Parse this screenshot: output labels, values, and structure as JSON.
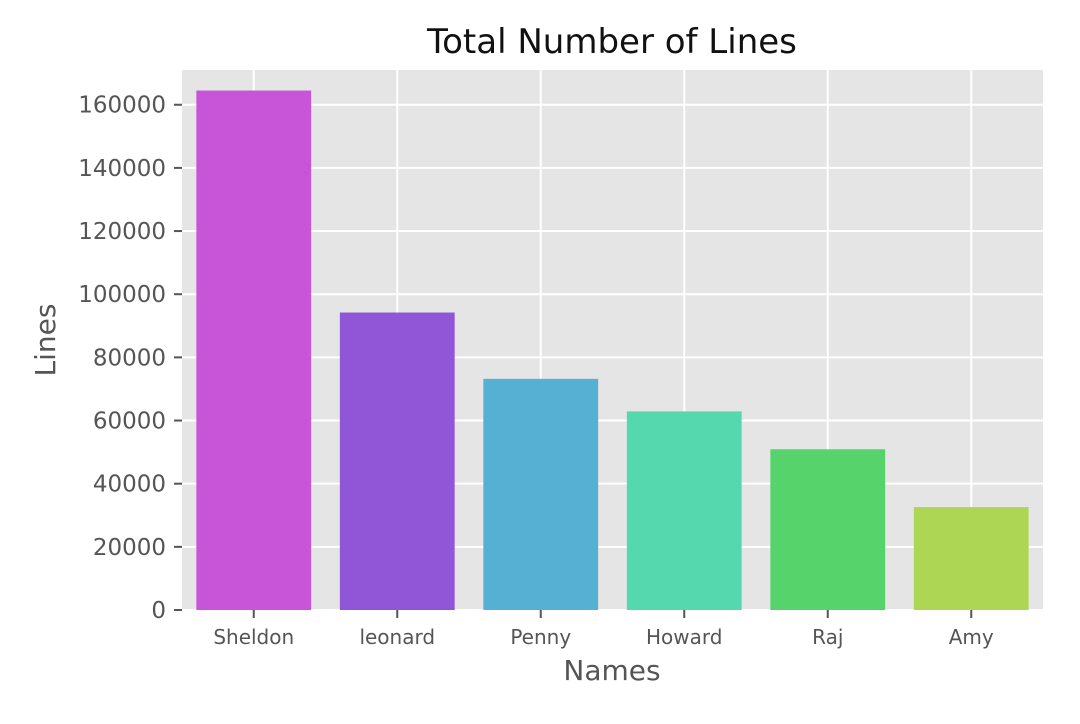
{
  "chart_data": {
    "type": "bar",
    "title": "Total Number of Lines",
    "xlabel": "Names",
    "ylabel": "Lines",
    "categories": [
      "Sheldon",
      "leonard",
      "Penny",
      "Howard",
      "Raj",
      "Amy"
    ],
    "values": [
      164500,
      94200,
      73200,
      62900,
      50900,
      32600
    ],
    "colors": [
      "#c855d8",
      "#9155d8",
      "#55b0d4",
      "#55d8ae",
      "#56d46b",
      "#aed655"
    ],
    "ylim": [
      0,
      171000
    ],
    "yticks": [
      0,
      20000,
      40000,
      60000,
      80000,
      100000,
      120000,
      140000,
      160000
    ],
    "grid": true,
    "style": {
      "background": "#e5e5e5",
      "grid_color": "#ffffff",
      "text_color": "#555555",
      "title_color": "#111111"
    }
  }
}
